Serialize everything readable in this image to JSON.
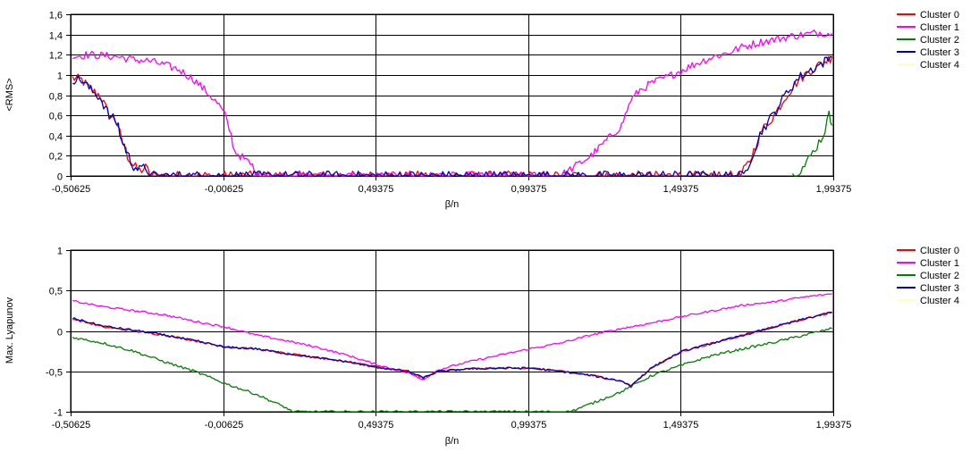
{
  "chart_data": [
    {
      "type": "line",
      "xlabel": "β/n",
      "ylabel": "<RMS>",
      "xlim": [
        -0.50625,
        1.99375
      ],
      "ylim": [
        0,
        1.6
      ],
      "grid": true,
      "legend_placement": "right",
      "x_ticks": [
        "-0,50625",
        "-0,00625",
        "0,49375",
        "0,99375",
        "1,49375",
        "1,99375"
      ],
      "y_ticks": [
        "0",
        "0,2",
        "0,4",
        "0,6",
        "0,8",
        "1",
        "1,2",
        "1,4",
        "1,6"
      ],
      "series": [
        {
          "name": "Cluster 0",
          "color": "#ff0000",
          "noise": 0.05,
          "x": [
            -0.5,
            -0.47,
            -0.44,
            -0.41,
            -0.38,
            -0.36,
            -0.35,
            -0.34,
            -0.33,
            -0.32,
            -0.31,
            -0.3,
            -0.28,
            -0.26,
            -0.24,
            1.69,
            1.7,
            1.72,
            1.74,
            1.76,
            1.8,
            1.84,
            1.88,
            1.92,
            1.96,
            1.99
          ],
          "y": [
            0.97,
            0.95,
            0.85,
            0.8,
            0.6,
            0.55,
            0.5,
            0.35,
            0.3,
            0.2,
            0.15,
            0.1,
            0.05,
            0.08,
            0.0,
            0.0,
            0.05,
            0.15,
            0.3,
            0.45,
            0.6,
            0.8,
            0.95,
            1.05,
            1.12,
            1.18
          ]
        },
        {
          "name": "Cluster 1",
          "color": "#ff00ff",
          "noise": 0.04,
          "x": [
            -0.5,
            -0.45,
            -0.4,
            -0.35,
            -0.3,
            -0.25,
            -0.2,
            -0.15,
            -0.1,
            -0.05,
            -0.02,
            0.0,
            0.02,
            0.03,
            0.05,
            0.07,
            0.09,
            0.1,
            1.1,
            1.15,
            1.2,
            1.25,
            1.3,
            1.33,
            1.36,
            1.4,
            1.45,
            1.5,
            1.55,
            1.6,
            1.65,
            1.7,
            1.75,
            1.8,
            1.85,
            1.9,
            1.95,
            1.99
          ],
          "y": [
            1.18,
            1.2,
            1.19,
            1.18,
            1.15,
            1.14,
            1.1,
            1.05,
            0.95,
            0.8,
            0.7,
            0.6,
            0.4,
            0.25,
            0.2,
            0.15,
            0.1,
            0.0,
            0.0,
            0.1,
            0.2,
            0.35,
            0.5,
            0.75,
            0.85,
            0.92,
            0.98,
            1.05,
            1.12,
            1.18,
            1.22,
            1.28,
            1.32,
            1.35,
            1.38,
            1.4,
            1.42,
            1.41
          ]
        },
        {
          "name": "Cluster 2",
          "color": "#008000",
          "noise": 0.05,
          "x": [
            1.86,
            1.88,
            1.9,
            1.92,
            1.94,
            1.96,
            1.98,
            1.99
          ],
          "y": [
            0.0,
            0.05,
            0.1,
            0.2,
            0.3,
            0.4,
            0.6,
            0.5
          ]
        },
        {
          "name": "Cluster 3",
          "color": "#0000c0",
          "noise": 0.05,
          "x": [
            -0.5,
            -0.47,
            -0.44,
            -0.41,
            -0.38,
            -0.36,
            -0.35,
            -0.34,
            -0.33,
            -0.32,
            -0.31,
            -0.3,
            -0.28,
            -0.26,
            -0.24,
            1.7,
            1.72,
            1.74,
            1.76,
            1.8,
            1.84,
            1.88,
            1.92,
            1.96,
            1.99
          ],
          "y": [
            0.96,
            0.95,
            0.85,
            0.78,
            0.6,
            0.55,
            0.5,
            0.35,
            0.3,
            0.22,
            0.15,
            0.1,
            0.06,
            0.08,
            0.0,
            0.0,
            0.15,
            0.3,
            0.45,
            0.62,
            0.82,
            0.97,
            1.05,
            1.12,
            1.18
          ]
        },
        {
          "name": "Cluster 4",
          "color": "#ffffc0",
          "noise": 0.0,
          "x": [],
          "y": []
        }
      ]
    },
    {
      "type": "line",
      "xlabel": "β/n",
      "ylabel": "Max. Lyapunov",
      "xlim": [
        -0.50625,
        1.99375
      ],
      "ylim": [
        -1,
        1
      ],
      "grid": true,
      "legend_placement": "right",
      "x_ticks": [
        "-0,50625",
        "-0,00625",
        "0,49375",
        "0,99375",
        "1,49375",
        "1,99375"
      ],
      "y_ticks": [
        "-1",
        "-0,5",
        "0",
        "0,5",
        "1"
      ],
      "series": [
        {
          "name": "Cluster 0",
          "color": "#ff0000",
          "noise": 0.012,
          "x": [
            -0.5,
            -0.4,
            -0.3,
            -0.2,
            -0.1,
            0.0,
            0.1,
            0.2,
            0.3,
            0.4,
            0.5,
            0.6,
            0.65,
            0.7,
            0.8,
            0.9,
            1.0,
            1.1,
            1.2,
            1.3,
            1.33,
            1.4,
            1.5,
            1.6,
            1.7,
            1.8,
            1.9,
            1.99
          ],
          "y": [
            0.15,
            0.05,
            0.0,
            -0.05,
            -0.12,
            -0.2,
            -0.22,
            -0.28,
            -0.33,
            -0.38,
            -0.45,
            -0.5,
            -0.58,
            -0.5,
            -0.47,
            -0.46,
            -0.46,
            -0.5,
            -0.55,
            -0.62,
            -0.68,
            -0.45,
            -0.25,
            -0.15,
            -0.05,
            0.05,
            0.15,
            0.23
          ]
        },
        {
          "name": "Cluster 1",
          "color": "#ff00ff",
          "noise": 0.012,
          "x": [
            -0.5,
            -0.4,
            -0.3,
            -0.2,
            -0.1,
            0.0,
            0.1,
            0.2,
            0.3,
            0.4,
            0.5,
            0.6,
            0.65,
            0.7,
            0.8,
            0.9,
            1.0,
            1.1,
            1.2,
            1.3,
            1.4,
            1.5,
            1.6,
            1.7,
            1.8,
            1.9,
            1.99
          ],
          "y": [
            0.37,
            0.3,
            0.25,
            0.2,
            0.12,
            0.05,
            -0.05,
            -0.12,
            -0.2,
            -0.3,
            -0.42,
            -0.52,
            -0.6,
            -0.48,
            -0.38,
            -0.3,
            -0.22,
            -0.15,
            -0.05,
            0.03,
            0.1,
            0.18,
            0.25,
            0.32,
            0.36,
            0.42,
            0.46
          ]
        },
        {
          "name": "Cluster 2",
          "color": "#008000",
          "noise": 0.015,
          "x": [
            -0.5,
            -0.4,
            -0.3,
            -0.2,
            -0.1,
            0.0,
            0.1,
            0.2,
            0.22,
            1.13,
            1.2,
            1.3,
            1.4,
            1.5,
            1.6,
            1.7,
            1.8,
            1.9,
            1.99
          ],
          "y": [
            -0.08,
            -0.15,
            -0.25,
            -0.38,
            -0.5,
            -0.65,
            -0.78,
            -0.95,
            -1.0,
            -1.0,
            -0.9,
            -0.75,
            -0.55,
            -0.42,
            -0.3,
            -0.22,
            -0.14,
            -0.05,
            0.03
          ]
        },
        {
          "name": "Cluster 3",
          "color": "#0000c0",
          "noise": 0.012,
          "x": [
            -0.5,
            -0.4,
            -0.3,
            -0.2,
            -0.1,
            0.0,
            0.1,
            0.2,
            0.3,
            0.4,
            0.5,
            0.6,
            0.65,
            0.7,
            0.8,
            0.9,
            1.0,
            1.1,
            1.2,
            1.3,
            1.33,
            1.4,
            1.5,
            1.6,
            1.7,
            1.8,
            1.9,
            1.99
          ],
          "y": [
            0.16,
            0.06,
            0.01,
            -0.05,
            -0.12,
            -0.2,
            -0.22,
            -0.28,
            -0.33,
            -0.38,
            -0.45,
            -0.5,
            -0.58,
            -0.5,
            -0.47,
            -0.46,
            -0.46,
            -0.5,
            -0.55,
            -0.62,
            -0.68,
            -0.45,
            -0.25,
            -0.15,
            -0.05,
            0.05,
            0.15,
            0.23
          ]
        },
        {
          "name": "Cluster 4",
          "color": "#ffffc0",
          "noise": 0.0,
          "x": [],
          "y": []
        }
      ]
    }
  ]
}
